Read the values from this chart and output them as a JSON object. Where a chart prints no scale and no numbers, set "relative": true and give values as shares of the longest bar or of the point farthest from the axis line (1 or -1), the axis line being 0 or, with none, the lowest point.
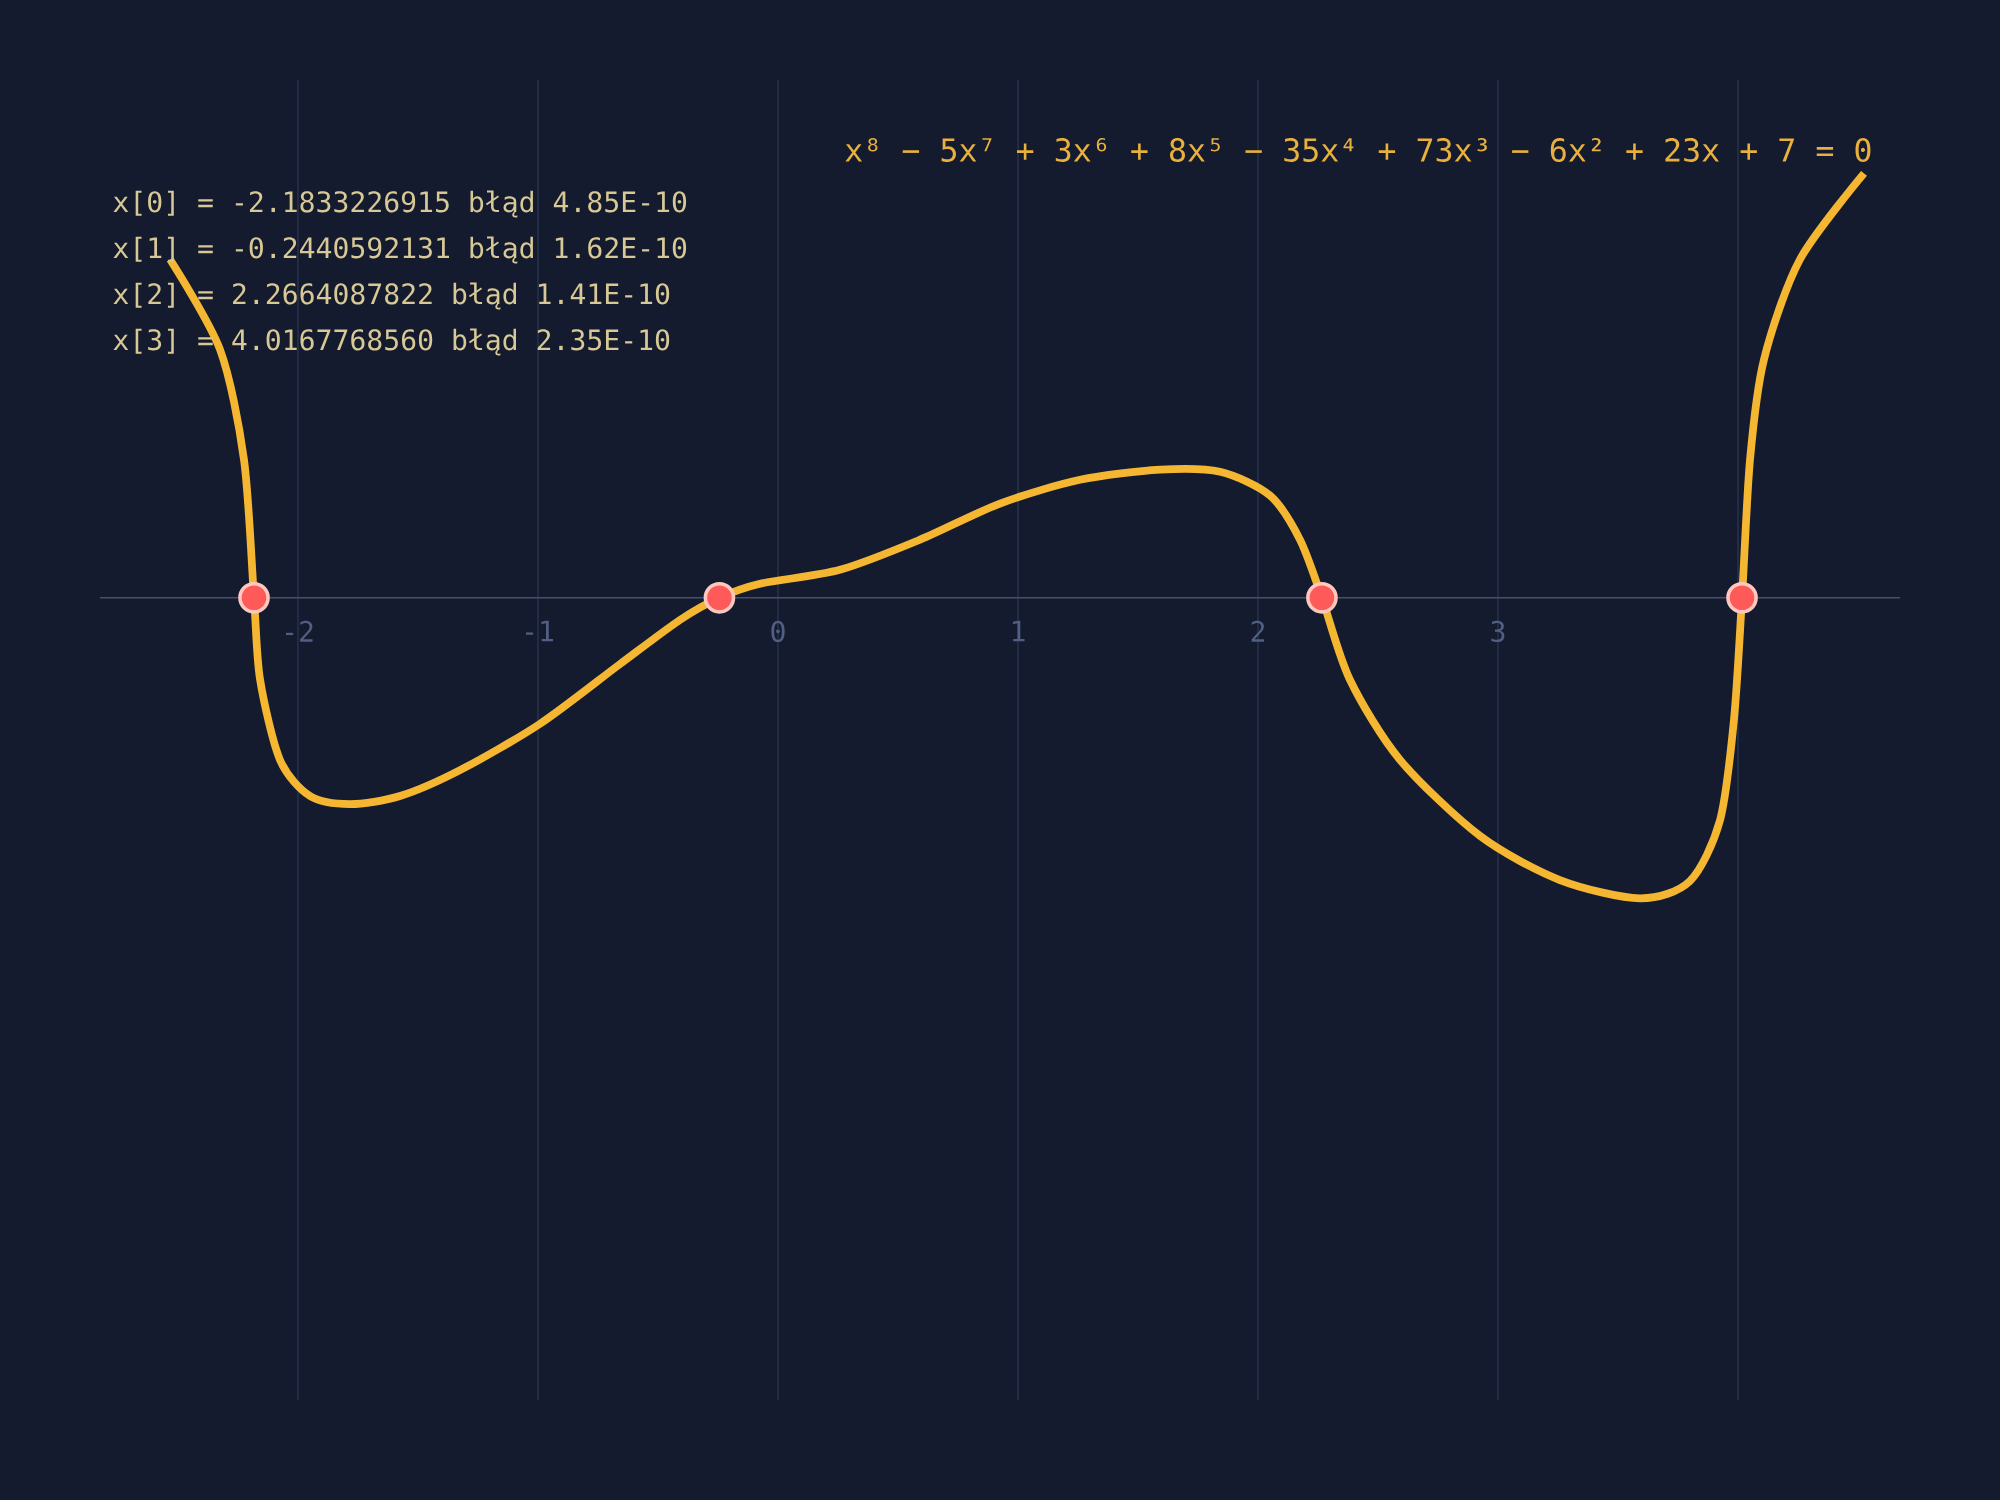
{
  "chart_data": {
    "type": "line",
    "title": "x⁸ − 5x⁷ + 3x⁶ + 8x⁵ − 35x⁴ + 73x³ − 6x² + 23x + 7 = 0",
    "annotations": [
      "x[0] = -2.1833226915 błąd 4.85E-10",
      "x[1] = -0.2440592131 błąd 1.62E-10",
      "x[2] =  2.2664087822 błąd 1.41E-10",
      "x[3] =  4.0167768560 błąd 2.35E-10"
    ],
    "relative": true,
    "xlim": [
      -2.825,
      4.675
    ],
    "xticks": [
      -2,
      -1,
      0,
      1,
      2,
      3,
      {
        "value": 4,
        "label": null
      }
    ],
    "tick_labels": "x",
    "grid": true,
    "series": [
      {
        "color": "#f5b731",
        "marker": "none",
        "line_style": "solid",
        "x": [
          -2.533,
          -2.325,
          -2.225,
          -2.1833226915,
          -2.158,
          -2.075,
          -1.95,
          -1.783,
          -1.575,
          -1.325,
          -0.992,
          -0.658,
          -0.408,
          -0.2440592131,
          -0.075,
          0.258,
          0.592,
          0.925,
          1.258,
          1.592,
          1.842,
          2.05,
          2.175,
          2.2664087822,
          2.383,
          2.592,
          2.925,
          3.258,
          3.592,
          3.8,
          3.925,
          3.983,
          4.016776856,
          4.05,
          4.108,
          4.258,
          4.525
        ],
        "values": [
          0.797,
          0.585,
          0.325,
          0,
          -0.193,
          -0.382,
          -0.467,
          -0.486,
          -0.467,
          -0.406,
          -0.297,
          -0.156,
          -0.052,
          0,
          0.033,
          0.066,
          0.137,
          0.222,
          0.278,
          0.302,
          0.297,
          0.241,
          0.137,
          0,
          -0.193,
          -0.382,
          -0.561,
          -0.665,
          -0.708,
          -0.667,
          -0.524,
          -0.288,
          0,
          0.325,
          0.561,
          0.797,
          1
        ]
      },
      {
        "type": "scatter",
        "color": "#ff5a5a",
        "marker": "circle",
        "x": [
          -2.1833226915,
          -0.2440592131,
          2.2664087822,
          4.016776856
        ],
        "values": [
          0,
          0,
          0,
          0
        ]
      }
    ]
  }
}
